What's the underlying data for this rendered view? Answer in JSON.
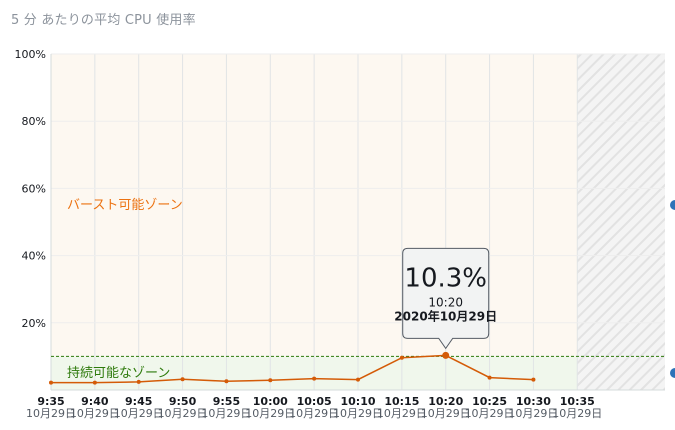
{
  "title": "5 分 あたりの平均 CPU 使用率",
  "chart_data": {
    "type": "line",
    "title": "5 分 あたりの平均 CPU 使用率",
    "xlabel": "",
    "ylabel": "",
    "ylim": [
      0,
      100
    ],
    "yticks": [
      "100%",
      "80%",
      "60%",
      "40%",
      "20%"
    ],
    "ytick_values": [
      100,
      80,
      60,
      40,
      20
    ],
    "grid": true,
    "x_date_label": "10月29日",
    "x_start": "9:35",
    "x_end": "10:45",
    "xticks": [
      "9:35",
      "9:40",
      "9:45",
      "9:50",
      "9:55",
      "10:00",
      "10:05",
      "10:10",
      "10:15",
      "10:20",
      "10:25",
      "10:30",
      "10:35"
    ],
    "series": [
      {
        "x": [
          "9:35",
          "9:40",
          "9:45",
          "9:50",
          "9:55",
          "10:00",
          "10:05",
          "10:10",
          "10:15",
          "10:20",
          "10:25",
          "10:30"
        ],
        "values": [
          2.2,
          2.2,
          2.4,
          3.2,
          2.6,
          2.9,
          3.4,
          3.1,
          9.6,
          10.3,
          3.7,
          3.1
        ],
        "color": "#d45b07"
      }
    ],
    "baseline": {
      "value": 10,
      "color": "#2d7a0b"
    },
    "zones": [
      {
        "label": "バースト可能ゾーン",
        "from": 10,
        "to": 100,
        "color": "#ec7211"
      },
      {
        "label": "持続可能なゾーン",
        "from": 0,
        "to": 10,
        "color": "#2d7a0b"
      }
    ],
    "future_from": "10:35",
    "tooltip": {
      "value": "10.3%",
      "time": "10:20",
      "date": "2020年10月29日",
      "x": "10:20",
      "y": 10.3
    }
  }
}
